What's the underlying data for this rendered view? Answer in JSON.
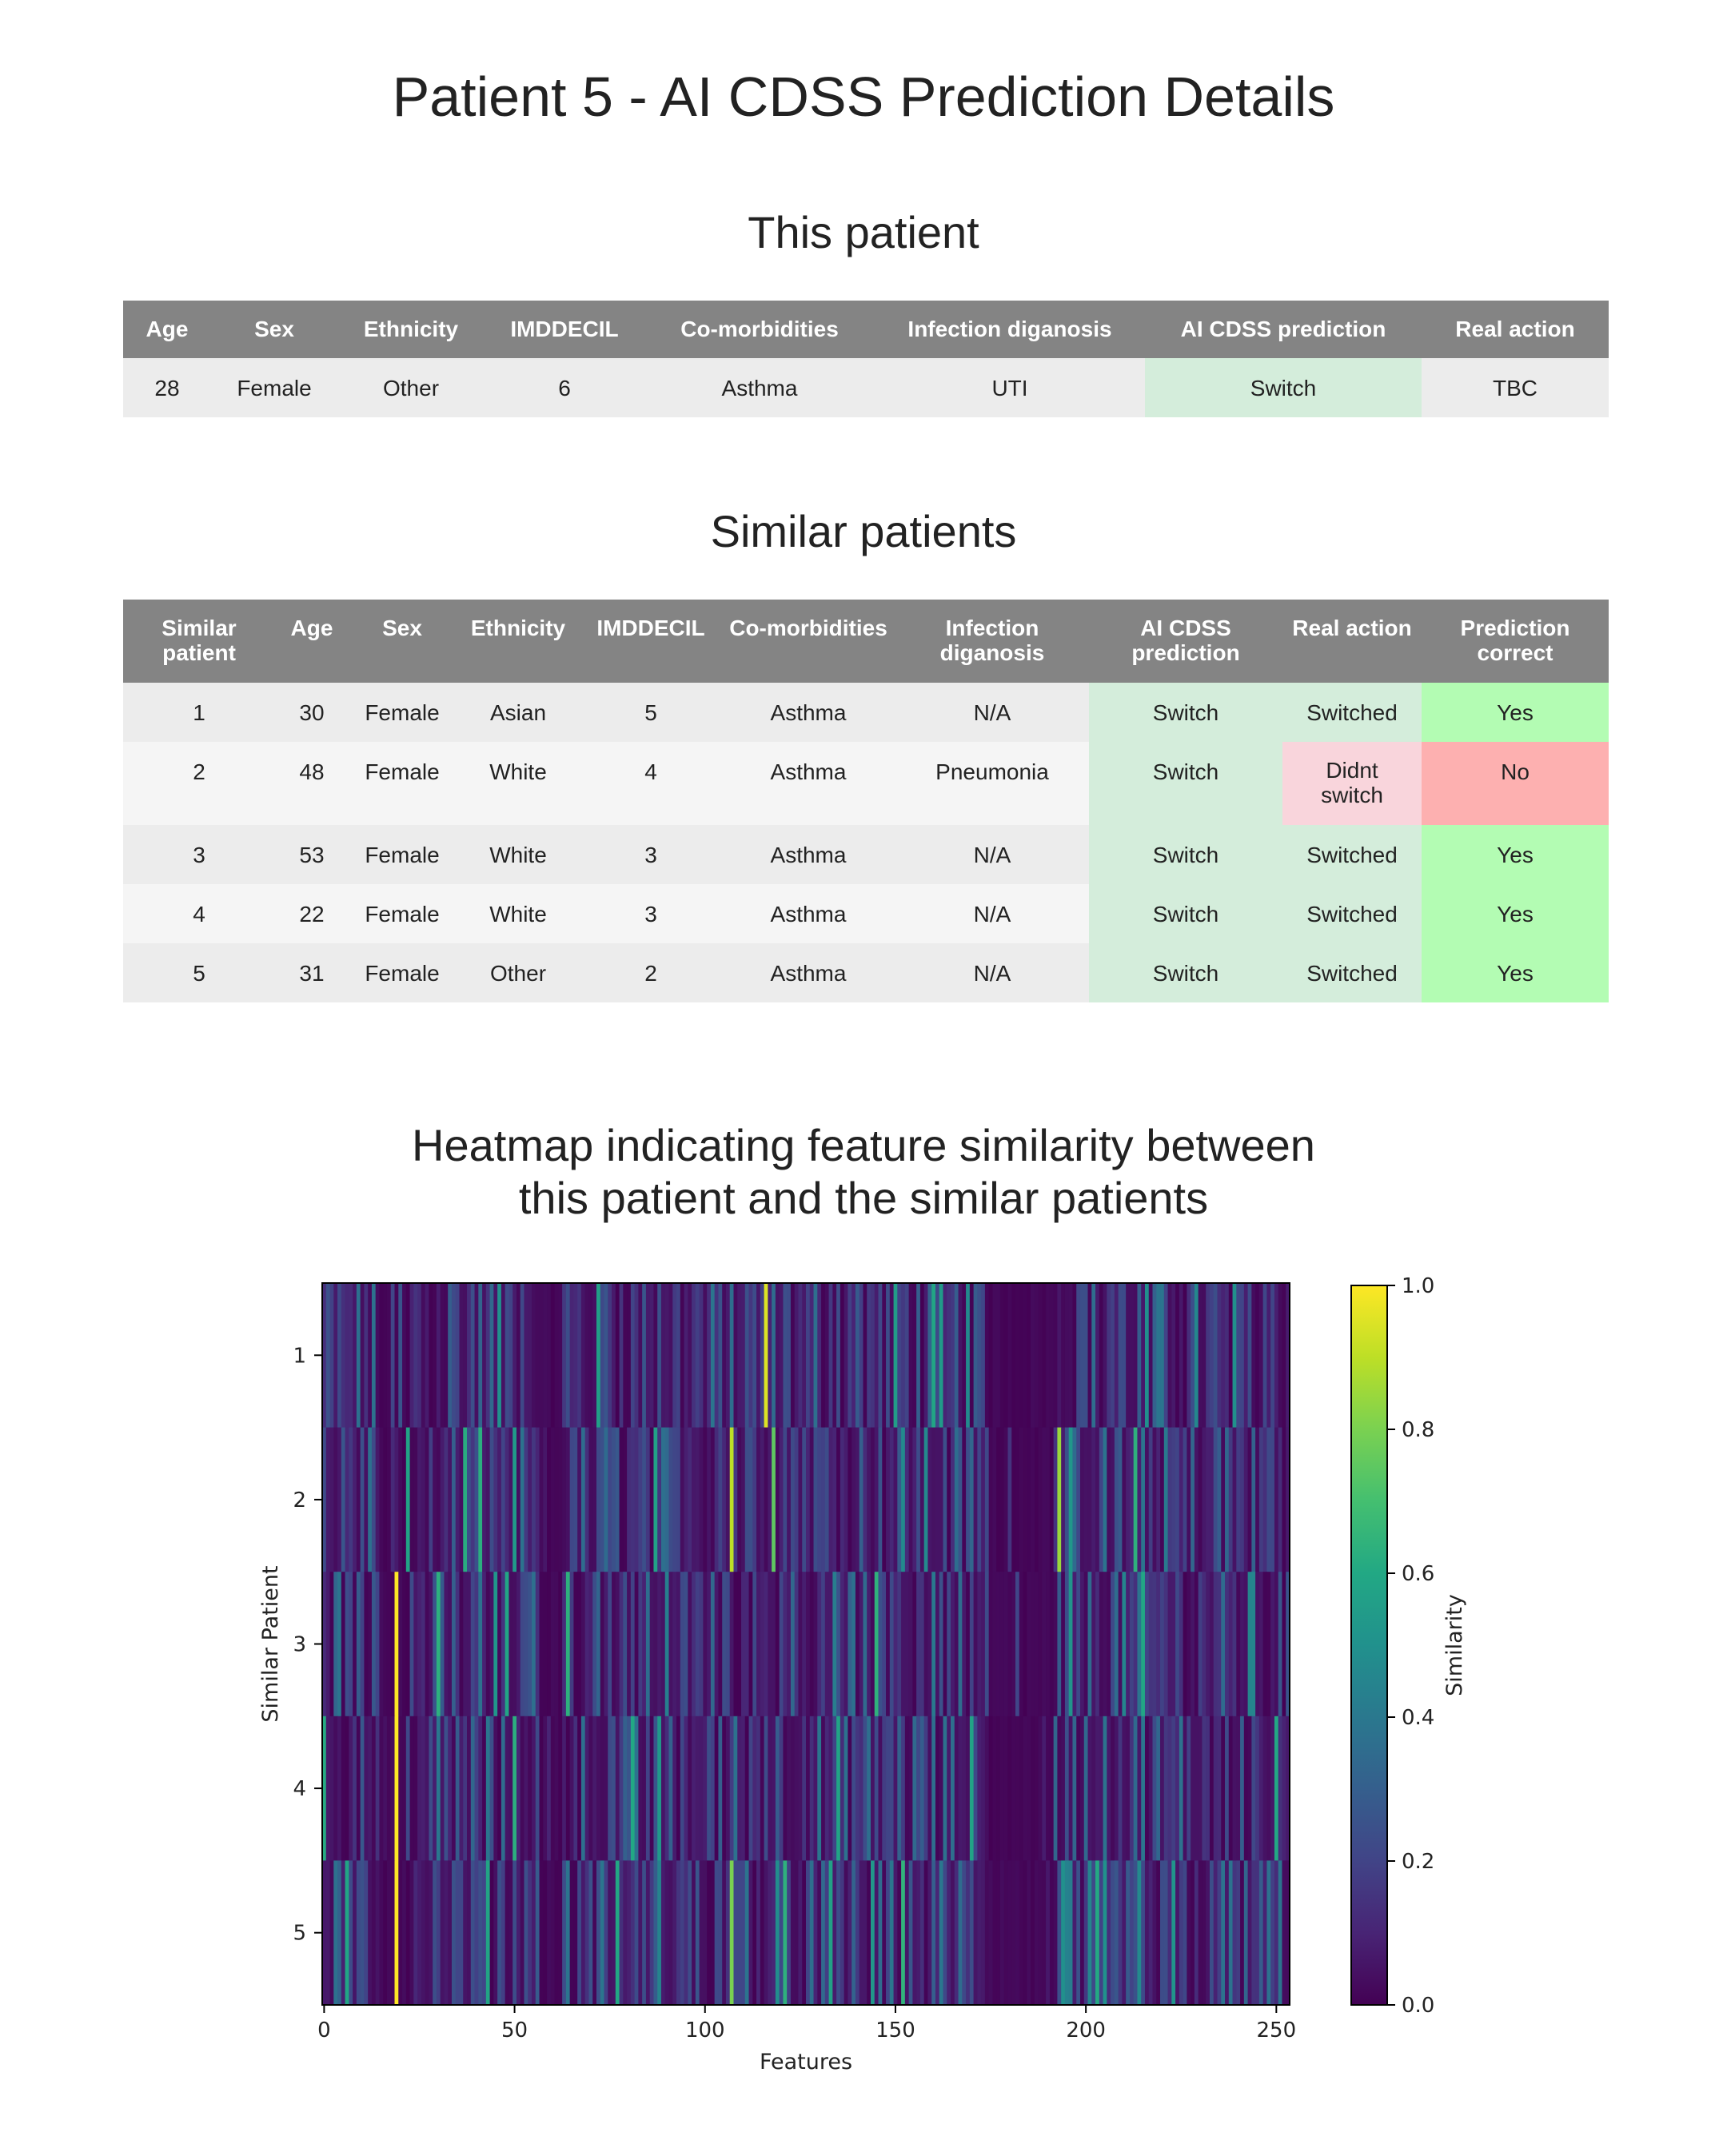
{
  "page": {
    "title": "Patient 5 - AI CDSS Prediction Details",
    "this_patient_heading": "This patient",
    "similar_patients_heading": "Similar patients",
    "heatmap_title_line1": "Heatmap indicating feature similarity between",
    "heatmap_title_line2": "this patient and the similar patients"
  },
  "this_patient": {
    "headers": [
      "Age",
      "Sex",
      "Ethnicity",
      "IMDDECIL",
      "Co-morbidities",
      "Infection diganosis",
      "AI CDSS prediction",
      "Real action"
    ],
    "row": [
      "28",
      "Female",
      "Other",
      "6",
      "Asthma",
      "UTI",
      "Switch",
      "TBC"
    ]
  },
  "similar_patients": {
    "headers": [
      "Similar patient",
      "Age",
      "Sex",
      "Ethnicity",
      "IMDDECIL",
      "Co-morbidities",
      "Infection diganosis",
      "AI CDSS prediction",
      "Real action",
      "Prediction correct"
    ],
    "rows": [
      [
        "1",
        "30",
        "Female",
        "Asian",
        "5",
        "Asthma",
        "N/A",
        "Switch",
        "Switched",
        "Yes"
      ],
      [
        "2",
        "48",
        "Female",
        "White",
        "4",
        "Asthma",
        "Pneumonia",
        "Switch",
        "Didnt switch",
        "No"
      ],
      [
        "3",
        "53",
        "Female",
        "White",
        "3",
        "Asthma",
        "N/A",
        "Switch",
        "Switched",
        "Yes"
      ],
      [
        "4",
        "22",
        "Female",
        "White",
        "3",
        "Asthma",
        "N/A",
        "Switch",
        "Switched",
        "Yes"
      ],
      [
        "5",
        "31",
        "Female",
        "Other",
        "2",
        "Asthma",
        "N/A",
        "Switch",
        "Switched",
        "Yes"
      ]
    ]
  },
  "colors": {
    "header_bg": "#848484",
    "switch_bg": "#d4eddb",
    "switched_bg": "#d4eddb",
    "didnt_switch_bg": "#f9d5dc",
    "correct_yes_bg": "#b3fcb3",
    "correct_no_bg": "#fdb0b0",
    "row_odd_bg": "#ececec",
    "row_even_bg": "#f5f5f5"
  },
  "chart_data": {
    "type": "heatmap",
    "title": "",
    "xlabel": "Features",
    "ylabel": "Similar Patient",
    "colorbar_label": "Similarity",
    "colormap": "viridis",
    "x_range": [
      0,
      253
    ],
    "x_ticks": [
      "0",
      "50",
      "100",
      "150",
      "200",
      "250"
    ],
    "y_ticks": [
      "1",
      "2",
      "3",
      "4",
      "5"
    ],
    "colorbar_ticks": [
      "0.0",
      "0.2",
      "0.4",
      "0.6",
      "0.8",
      "1.0"
    ],
    "value_range": [
      0.0,
      1.0
    ],
    "n_features": 254,
    "highlights": [
      {
        "patient": 1,
        "feature": 116,
        "value": 0.95
      },
      {
        "patient": 2,
        "feature": 107,
        "value": 0.9
      },
      {
        "patient": 2,
        "feature": 118,
        "value": 0.75
      },
      {
        "patient": 2,
        "feature": 193,
        "value": 0.85
      },
      {
        "patient": 3,
        "feature": 19,
        "value": 1.0
      },
      {
        "patient": 4,
        "feature": 19,
        "value": 1.0
      },
      {
        "patient": 5,
        "feature": 19,
        "value": 1.0
      },
      {
        "patient": 5,
        "feature": 107,
        "value": 0.8
      }
    ]
  }
}
